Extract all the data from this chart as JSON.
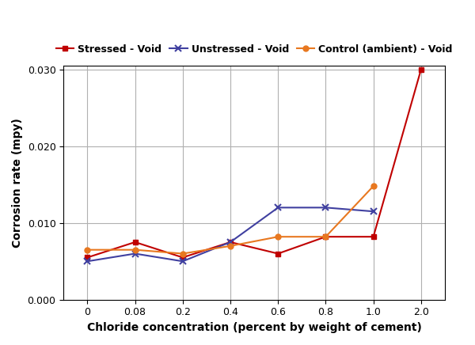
{
  "x_labels": [
    "0",
    "0.08",
    "0.2",
    "0.4",
    "0.6",
    "0.8",
    "1.0",
    "2.0"
  ],
  "x_positions": [
    0,
    1,
    2,
    3,
    4,
    5,
    6,
    7
  ],
  "stressed_void": [
    0.0055,
    0.0075,
    0.0055,
    0.0075,
    0.006,
    0.0082,
    0.0082,
    0.03
  ],
  "unstressed_void": [
    0.005,
    0.006,
    0.005,
    0.0075,
    0.012,
    0.012,
    0.0115
  ],
  "control_void": [
    0.0065,
    0.0065,
    0.006,
    0.007,
    0.0082,
    0.0082,
    0.0148
  ],
  "stressed_color": "#C00000",
  "unstressed_color": "#4040A0",
  "control_color": "#E87820",
  "xlabel": "Chloride concentration (percent by weight of cement)",
  "ylabel": "Corrosion rate (mpy)",
  "ylim": [
    0,
    0.0305
  ],
  "yticks": [
    0.0,
    0.01,
    0.02,
    0.03
  ],
  "ytick_labels": [
    "0.000",
    "0.010",
    "0.020",
    "0.030"
  ],
  "legend_labels": [
    "Stressed - Void",
    "Unstressed - Void",
    "Control (ambient) - Void"
  ],
  "background_color": "#ffffff",
  "grid_color": "#b0b0b0"
}
